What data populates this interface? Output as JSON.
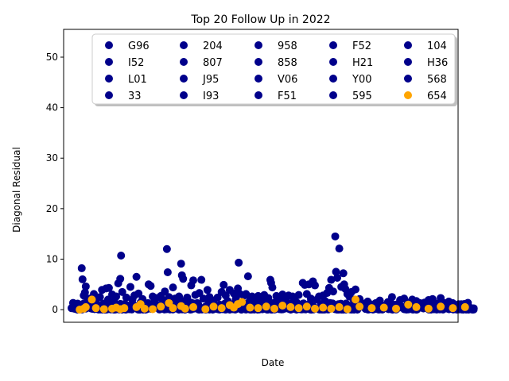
{
  "chart_data": {
    "type": "scatter",
    "title": "Top 20 Follow Up in 2022",
    "xlabel": "Date",
    "ylabel": "Diagonal Residual",
    "ylim": [
      -2.5,
      55.5
    ],
    "yticks": [
      0,
      10,
      20,
      30,
      40,
      50
    ],
    "xticks_visible": false,
    "grid": false,
    "legend_placement": "top-center",
    "legend_columns": 5,
    "colors": {
      "main": "#00008b",
      "highlight": "#ffa500"
    },
    "series": [
      {
        "name": "G96",
        "color": "#00008b"
      },
      {
        "name": "I52",
        "color": "#00008b"
      },
      {
        "name": "L01",
        "color": "#00008b"
      },
      {
        "name": "33",
        "color": "#00008b"
      },
      {
        "name": "204",
        "color": "#00008b"
      },
      {
        "name": "807",
        "color": "#00008b"
      },
      {
        "name": "J95",
        "color": "#00008b"
      },
      {
        "name": "I93",
        "color": "#00008b"
      },
      {
        "name": "958",
        "color": "#00008b"
      },
      {
        "name": "858",
        "color": "#00008b"
      },
      {
        "name": "V06",
        "color": "#00008b"
      },
      {
        "name": "F51",
        "color": "#00008b"
      },
      {
        "name": "F52",
        "color": "#00008b"
      },
      {
        "name": "H21",
        "color": "#00008b"
      },
      {
        "name": "Y00",
        "color": "#00008b"
      },
      {
        "name": "595",
        "color": "#00008b"
      },
      {
        "name": "104",
        "color": "#00008b"
      },
      {
        "name": "H36",
        "color": "#00008b"
      },
      {
        "name": "568",
        "color": "#00008b"
      },
      {
        "name": "654",
        "color": "#ffa500"
      }
    ],
    "points_main": [
      [
        0.01,
        0.6
      ],
      [
        0.015,
        1.2
      ],
      [
        0.02,
        0.3
      ],
      [
        0.025,
        8.2
      ],
      [
        0.027,
        6.0
      ],
      [
        0.03,
        2.8
      ],
      [
        0.033,
        3.4
      ],
      [
        0.035,
        4.6
      ],
      [
        0.038,
        1.5
      ],
      [
        0.04,
        0.9
      ],
      [
        0.045,
        2.2
      ],
      [
        0.05,
        1.0
      ],
      [
        0.055,
        3.1
      ],
      [
        0.06,
        1.8
      ],
      [
        0.065,
        0.7
      ],
      [
        0.07,
        2.5
      ],
      [
        0.075,
        3.9
      ],
      [
        0.08,
        1.2
      ],
      [
        0.085,
        4.2
      ],
      [
        0.09,
        2.0
      ],
      [
        0.092,
        4.3
      ],
      [
        0.095,
        0.8
      ],
      [
        0.1,
        3.0
      ],
      [
        0.105,
        1.6
      ],
      [
        0.11,
        2.6
      ],
      [
        0.115,
        5.2
      ],
      [
        0.12,
        6.1
      ],
      [
        0.122,
        10.7
      ],
      [
        0.125,
        3.5
      ],
      [
        0.13,
        1.1
      ],
      [
        0.135,
        2.4
      ],
      [
        0.14,
        0.6
      ],
      [
        0.145,
        4.5
      ],
      [
        0.15,
        2.0
      ],
      [
        0.155,
        2.8
      ],
      [
        0.16,
        6.5
      ],
      [
        0.165,
        3.2
      ],
      [
        0.17,
        1.4
      ],
      [
        0.175,
        2.1
      ],
      [
        0.18,
        0.9
      ],
      [
        0.19,
        5.0
      ],
      [
        0.195,
        4.7
      ],
      [
        0.2,
        2.6
      ],
      [
        0.205,
        1.5
      ],
      [
        0.21,
        2.3
      ],
      [
        0.215,
        0.8
      ],
      [
        0.22,
        2.7
      ],
      [
        0.225,
        1.9
      ],
      [
        0.23,
        3.6
      ],
      [
        0.235,
        12.0
      ],
      [
        0.237,
        7.4
      ],
      [
        0.24,
        2.5
      ],
      [
        0.245,
        1.3
      ],
      [
        0.25,
        4.4
      ],
      [
        0.255,
        2.2
      ],
      [
        0.26,
        0.7
      ],
      [
        0.265,
        2.6
      ],
      [
        0.27,
        9.1
      ],
      [
        0.272,
        6.8
      ],
      [
        0.275,
        6.1
      ],
      [
        0.28,
        1.8
      ],
      [
        0.285,
        2.4
      ],
      [
        0.29,
        0.9
      ],
      [
        0.295,
        4.8
      ],
      [
        0.3,
        5.8
      ],
      [
        0.305,
        2.9
      ],
      [
        0.31,
        1.3
      ],
      [
        0.315,
        3.3
      ],
      [
        0.32,
        5.9
      ],
      [
        0.325,
        2.2
      ],
      [
        0.33,
        0.6
      ],
      [
        0.335,
        3.9
      ],
      [
        0.34,
        2.5
      ],
      [
        0.345,
        1.1
      ],
      [
        0.35,
        1.8
      ],
      [
        0.36,
        2.4
      ],
      [
        0.365,
        0.9
      ],
      [
        0.37,
        3.5
      ],
      [
        0.375,
        4.9
      ],
      [
        0.38,
        2.8
      ],
      [
        0.385,
        1.7
      ],
      [
        0.39,
        3.9
      ],
      [
        0.395,
        1.0
      ],
      [
        0.4,
        3.2
      ],
      [
        0.405,
        2.1
      ],
      [
        0.41,
        4.2
      ],
      [
        0.412,
        9.3
      ],
      [
        0.415,
        3.1
      ],
      [
        0.42,
        1.4
      ],
      [
        0.425,
        2.8
      ],
      [
        0.43,
        3.1
      ],
      [
        0.435,
        6.6
      ],
      [
        0.44,
        1.9
      ],
      [
        0.445,
        2.6
      ],
      [
        0.45,
        1.0
      ],
      [
        0.455,
        2.3
      ],
      [
        0.46,
        2.7
      ],
      [
        0.465,
        1.2
      ],
      [
        0.47,
        2.5
      ],
      [
        0.475,
        2.9
      ],
      [
        0.48,
        1.6
      ],
      [
        0.485,
        2.3
      ],
      [
        0.49,
        5.9
      ],
      [
        0.492,
        5.3
      ],
      [
        0.495,
        4.4
      ],
      [
        0.5,
        1.4
      ],
      [
        0.505,
        2.7
      ],
      [
        0.51,
        0.8
      ],
      [
        0.515,
        2.0
      ],
      [
        0.52,
        3.0
      ],
      [
        0.525,
        1.5
      ],
      [
        0.53,
        2.4
      ],
      [
        0.535,
        2.8
      ],
      [
        0.54,
        1.0
      ],
      [
        0.545,
        2.6
      ],
      [
        0.55,
        2.0
      ],
      [
        0.555,
        1.4
      ],
      [
        0.56,
        2.9
      ],
      [
        0.565,
        0.7
      ],
      [
        0.57,
        5.3
      ],
      [
        0.575,
        4.9
      ],
      [
        0.58,
        3.1
      ],
      [
        0.585,
        5.0
      ],
      [
        0.59,
        2.2
      ],
      [
        0.595,
        5.6
      ],
      [
        0.6,
        4.8
      ],
      [
        0.605,
        2.0
      ],
      [
        0.61,
        2.6
      ],
      [
        0.615,
        1.1
      ],
      [
        0.62,
        2.8
      ],
      [
        0.625,
        1.7
      ],
      [
        0.63,
        3.3
      ],
      [
        0.635,
        4.3
      ],
      [
        0.64,
        5.9
      ],
      [
        0.645,
        3.6
      ],
      [
        0.65,
        14.5
      ],
      [
        0.652,
        7.5
      ],
      [
        0.655,
        6.3
      ],
      [
        0.66,
        12.1
      ],
      [
        0.665,
        4.5
      ],
      [
        0.67,
        7.2
      ],
      [
        0.672,
        5.0
      ],
      [
        0.675,
        4.1
      ],
      [
        0.68,
        3.1
      ],
      [
        0.685,
        2.6
      ],
      [
        0.69,
        3.5
      ],
      [
        0.695,
        2.0
      ],
      [
        0.7,
        4.0
      ],
      [
        0.705,
        1.4
      ],
      [
        0.71,
        2.1
      ],
      [
        0.715,
        0.8
      ],
      [
        0.72,
        1.2
      ],
      [
        0.73,
        1.6
      ],
      [
        0.74,
        0.6
      ],
      [
        0.75,
        1.3
      ],
      [
        0.76,
        1.8
      ],
      [
        0.77,
        0.7
      ],
      [
        0.78,
        1.5
      ],
      [
        0.79,
        2.5
      ],
      [
        0.8,
        1.0
      ],
      [
        0.81,
        1.9
      ],
      [
        0.82,
        2.2
      ],
      [
        0.83,
        1.1
      ],
      [
        0.84,
        2.0
      ],
      [
        0.85,
        1.7
      ],
      [
        0.86,
        0.9
      ],
      [
        0.87,
        1.4
      ],
      [
        0.88,
        1.9
      ],
      [
        0.89,
        2.1
      ],
      [
        0.9,
        1.2
      ],
      [
        0.91,
        2.3
      ],
      [
        0.92,
        1.0
      ],
      [
        0.93,
        1.6
      ],
      [
        0.94,
        0.5
      ],
      [
        0.95,
        0.9
      ],
      [
        0.96,
        0.3
      ],
      [
        0.97,
        0.1
      ],
      [
        0.98,
        0.4
      ],
      [
        0.99,
        0.2
      ]
    ],
    "points_highlight": [
      [
        0.02,
        0.0
      ],
      [
        0.03,
        0.2
      ],
      [
        0.035,
        0.5
      ],
      [
        0.05,
        2.0
      ],
      [
        0.06,
        0.3
      ],
      [
        0.08,
        0.1
      ],
      [
        0.1,
        0.2
      ],
      [
        0.11,
        0.4
      ],
      [
        0.12,
        0.1
      ],
      [
        0.13,
        0.3
      ],
      [
        0.16,
        0.5
      ],
      [
        0.17,
        1.1
      ],
      [
        0.18,
        0.2
      ],
      [
        0.2,
        0.1
      ],
      [
        0.22,
        0.6
      ],
      [
        0.24,
        1.3
      ],
      [
        0.25,
        0.3
      ],
      [
        0.27,
        0.7
      ],
      [
        0.28,
        0.2
      ],
      [
        0.3,
        0.5
      ],
      [
        0.33,
        0.1
      ],
      [
        0.35,
        0.6
      ],
      [
        0.37,
        0.3
      ],
      [
        0.39,
        0.9
      ],
      [
        0.4,
        0.4
      ],
      [
        0.41,
        1.1
      ],
      [
        0.42,
        1.5
      ],
      [
        0.44,
        0.4
      ],
      [
        0.46,
        0.3
      ],
      [
        0.48,
        0.6
      ],
      [
        0.5,
        0.2
      ],
      [
        0.52,
        0.8
      ],
      [
        0.54,
        0.5
      ],
      [
        0.56,
        0.3
      ],
      [
        0.58,
        0.6
      ],
      [
        0.6,
        0.2
      ],
      [
        0.62,
        0.4
      ],
      [
        0.64,
        0.2
      ],
      [
        0.66,
        0.5
      ],
      [
        0.68,
        0.1
      ],
      [
        0.7,
        2.0
      ],
      [
        0.71,
        0.6
      ],
      [
        0.74,
        0.3
      ],
      [
        0.77,
        0.4
      ],
      [
        0.8,
        0.2
      ],
      [
        0.83,
        1.0
      ],
      [
        0.85,
        0.5
      ],
      [
        0.88,
        0.2
      ],
      [
        0.91,
        0.6
      ],
      [
        0.94,
        0.3
      ],
      [
        0.97,
        0.5
      ]
    ],
    "dense_band": {
      "count": 520,
      "y_max": 1.4,
      "x_range": [
        0.0,
        1.0
      ]
    }
  }
}
